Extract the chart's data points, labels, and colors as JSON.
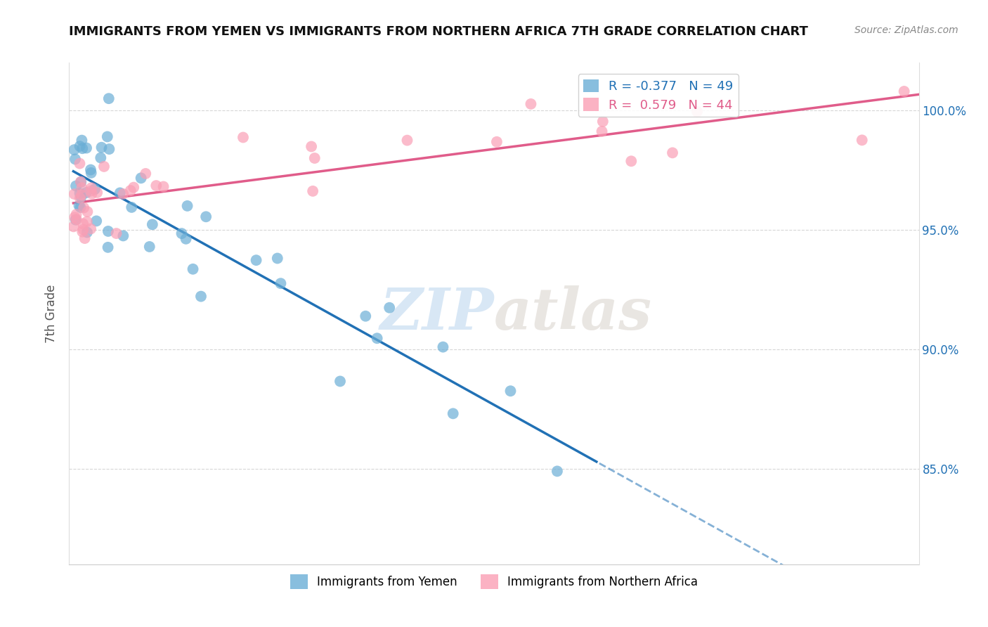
{
  "title": "IMMIGRANTS FROM YEMEN VS IMMIGRANTS FROM NORTHERN AFRICA 7TH GRADE CORRELATION CHART",
  "source": "Source: ZipAtlas.com",
  "ylabel": "7th Grade",
  "legend1_label": "R = -0.377   N = 49",
  "legend2_label": "R =  0.579   N = 44",
  "blue_color": "#6baed6",
  "pink_color": "#fa9fb5",
  "blue_line_color": "#2171b5",
  "pink_line_color": "#e05c8a",
  "watermark_zip": "ZIP",
  "watermark_atlas": "atlas",
  "xlim_min": -0.002,
  "xlim_max": 0.402,
  "ylim_min": 81,
  "ylim_max": 102,
  "y_ticks": [
    85,
    90,
    95,
    100
  ],
  "y_tick_labels": [
    "85.0%",
    "90.0%",
    "95.0%",
    "100.0%"
  ]
}
